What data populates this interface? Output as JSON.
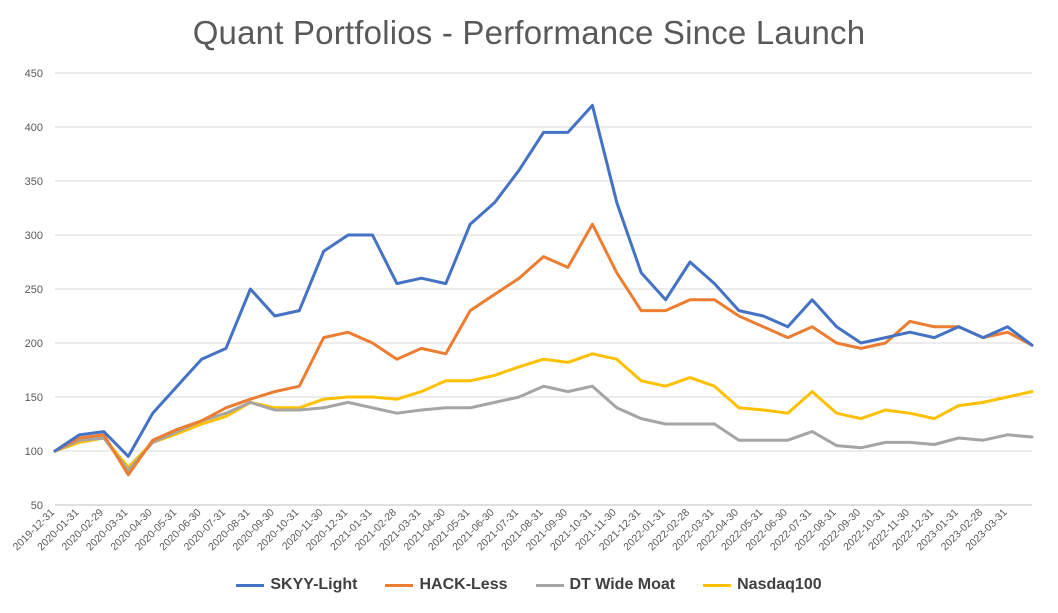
{
  "chart_data": {
    "type": "line",
    "title": "Quant Portfolios - Performance Since Launch",
    "xlabel": "",
    "ylabel": "",
    "ylim": [
      50,
      450
    ],
    "yticks": [
      50,
      100,
      150,
      200,
      250,
      300,
      350,
      400,
      450
    ],
    "grid": "horizontal",
    "legend_position": "bottom",
    "x": [
      "2019-12-31",
      "2020-01-31",
      "2020-02-29",
      "2020-03-31",
      "2020-04-30",
      "2020-05-31",
      "2020-06-30",
      "2020-07-31",
      "2020-08-31",
      "2020-09-30",
      "2020-10-31",
      "2020-11-30",
      "2020-12-31",
      "2021-01-31",
      "2021-02-28",
      "2021-03-31",
      "2021-04-30",
      "2021-05-31",
      "2021-06-30",
      "2021-07-31",
      "2021-08-31",
      "2021-09-30",
      "2021-10-31",
      "2021-11-30",
      "2021-12-31",
      "2022-01-31",
      "2022-02-28",
      "2022-03-31",
      "2022-04-30",
      "2022-05-31",
      "2022-06-30",
      "2022-07-31",
      "2022-08-31",
      "2022-09-30",
      "2022-10-31",
      "2022-11-30",
      "2022-12-31",
      "2023-01-31",
      "2023-02-28",
      "2023-03-31",
      "2023-04-28"
    ],
    "x_tick_labels": [
      "2019-12-31",
      "2020-01-31",
      "2020-02-29",
      "2020-03-31",
      "2020-04-30",
      "2020-05-31",
      "2020-06-30",
      "2020-07-31",
      "2020-08-31",
      "2020-09-30",
      "2020-10-31",
      "2020-11-30",
      "2020-12-31",
      "2021-01-31",
      "2021-02-28",
      "2021-03-31",
      "2021-04-30",
      "2021-05-31",
      "2021-06-30",
      "2021-07-31",
      "2021-08-31",
      "2021-09-30",
      "2021-10-31",
      "2021-11-30",
      "2021-12-31",
      "2022-01-31",
      "2022-02-28",
      "2022-03-31",
      "2022-04-30",
      "2022-05-31",
      "2022-06-30",
      "2022-07-31",
      "2022-08-31",
      "2022-09-30",
      "2022-10-31",
      "2022-11-30",
      "2022-12-31",
      "2023-01-31",
      "2023-02-28",
      "2023-03-31"
    ],
    "series": [
      {
        "name": "SKYY-Light",
        "color": "#4472c4",
        "values": [
          100,
          115,
          118,
          95,
          135,
          160,
          185,
          195,
          250,
          225,
          230,
          285,
          300,
          300,
          255,
          260,
          255,
          310,
          330,
          360,
          395,
          395,
          420,
          330,
          265,
          240,
          275,
          255,
          230,
          225,
          215,
          240,
          215,
          200,
          205,
          210,
          205,
          215,
          205,
          215,
          198
        ]
      },
      {
        "name": "HACK-Less",
        "color": "#ed7d31",
        "values": [
          100,
          112,
          115,
          78,
          110,
          120,
          128,
          140,
          148,
          155,
          160,
          205,
          210,
          200,
          185,
          195,
          190,
          230,
          245,
          260,
          280,
          270,
          310,
          265,
          230,
          230,
          240,
          240,
          225,
          215,
          205,
          215,
          200,
          195,
          200,
          220,
          215,
          215,
          205,
          210,
          198
        ]
      },
      {
        "name": "DT Wide Moat",
        "color": "#a5a5a5",
        "values": [
          100,
          110,
          112,
          82,
          108,
          118,
          128,
          135,
          145,
          138,
          138,
          140,
          145,
          140,
          135,
          138,
          140,
          140,
          145,
          150,
          160,
          155,
          160,
          140,
          130,
          125,
          125,
          125,
          110,
          110,
          110,
          118,
          105,
          103,
          108,
          108,
          106,
          112,
          110,
          115,
          113
        ]
      },
      {
        "name": "Nasdaq100",
        "color": "#ffc000",
        "values": [
          100,
          108,
          112,
          85,
          108,
          116,
          125,
          132,
          145,
          140,
          140,
          148,
          150,
          150,
          148,
          155,
          165,
          165,
          170,
          178,
          185,
          182,
          190,
          185,
          165,
          160,
          168,
          160,
          140,
          138,
          135,
          155,
          135,
          130,
          138,
          135,
          130,
          142,
          145,
          150,
          155
        ]
      }
    ]
  }
}
